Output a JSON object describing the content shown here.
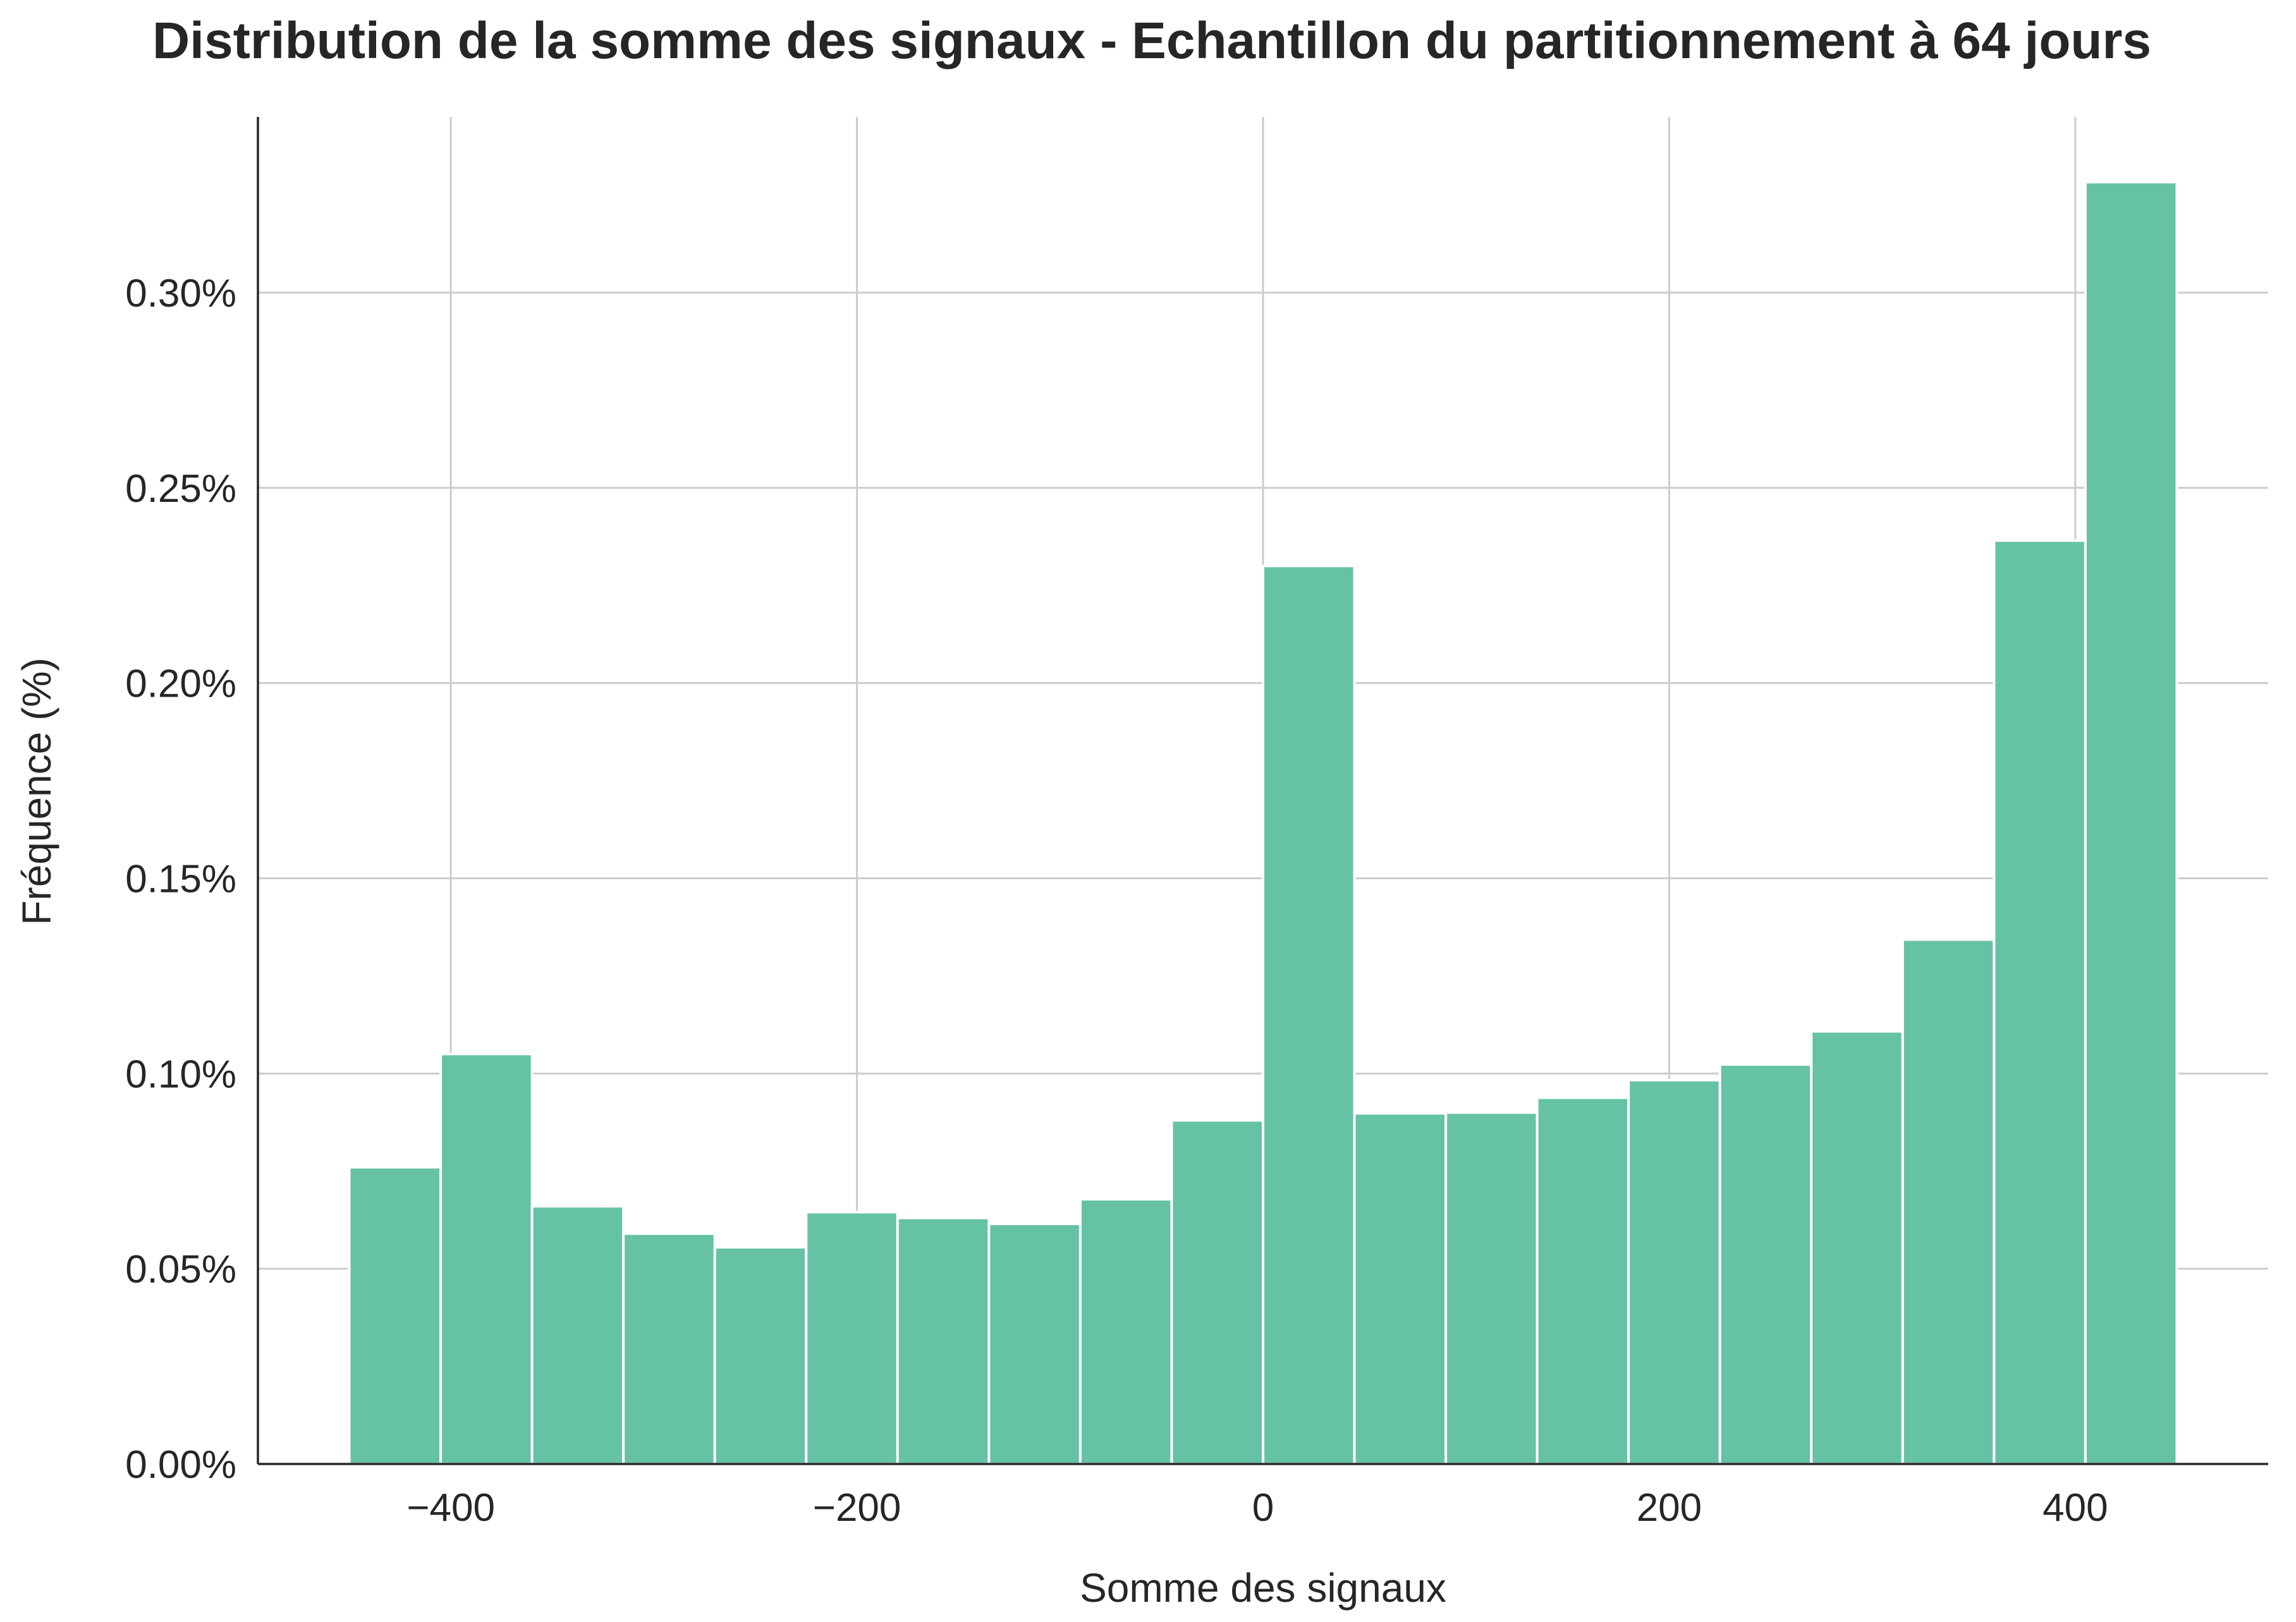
{
  "chart_data": {
    "type": "bar",
    "title": "Distribution de la somme des signaux - Echantillon du partitionnement à 64 jours",
    "xlabel": "Somme des signaux",
    "ylabel": "Fréquence (%)",
    "xlim": [
      -495,
      495
    ],
    "ylim": [
      0,
      0.345
    ],
    "x_ticks": [
      -400,
      -200,
      0,
      200,
      400
    ],
    "x_tick_labels": [
      "−400",
      "−200",
      "0",
      "200",
      "400"
    ],
    "y_ticks": [
      0,
      0.05,
      0.1,
      0.15,
      0.2,
      0.25,
      0.3
    ],
    "y_tick_labels": [
      "0.00%",
      "0.05%",
      "0.10%",
      "0.15%",
      "0.20%",
      "0.25%",
      "0.30%"
    ],
    "grid": true,
    "bar_color": "#66c2a5",
    "bin_edges": [
      -450,
      -405,
      -360,
      -315,
      -270,
      -225,
      -180,
      -135,
      -90,
      -45,
      0,
      45,
      90,
      135,
      180,
      225,
      270,
      315,
      360,
      405,
      450
    ],
    "values": [
      0.076,
      0.105,
      0.066,
      0.059,
      0.0555,
      0.0645,
      0.063,
      0.0615,
      0.0678,
      0.088,
      0.23,
      0.0898,
      0.09,
      0.0938,
      0.0983,
      0.1023,
      0.1108,
      0.1343,
      0.2365,
      0.3283
    ]
  }
}
